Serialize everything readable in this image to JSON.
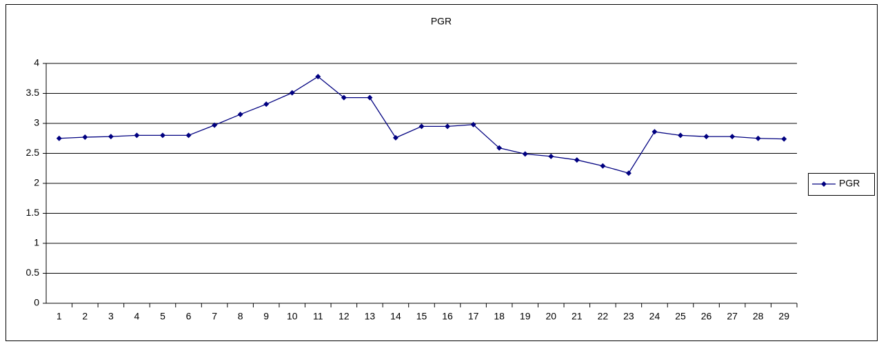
{
  "chart_data": {
    "type": "line",
    "title": "PGR",
    "categories": [
      1,
      2,
      3,
      4,
      5,
      6,
      7,
      8,
      9,
      10,
      11,
      12,
      13,
      14,
      15,
      16,
      17,
      18,
      19,
      20,
      21,
      22,
      23,
      24,
      25,
      26,
      27,
      28,
      29
    ],
    "series": [
      {
        "name": "PGR",
        "color": "#000080",
        "values": [
          2.75,
          2.77,
          2.78,
          2.8,
          2.8,
          2.8,
          2.97,
          3.15,
          3.32,
          3.51,
          3.78,
          3.43,
          3.43,
          2.76,
          2.95,
          2.95,
          2.98,
          2.59,
          2.49,
          2.45,
          2.39,
          2.29,
          2.17,
          2.86,
          2.8,
          2.78,
          2.78,
          2.75,
          2.74
        ]
      }
    ],
    "ylim": [
      0,
      4
    ],
    "yticks": [
      0,
      0.5,
      1,
      1.5,
      2,
      2.5,
      3,
      3.5,
      4
    ],
    "grid": true,
    "legend": "right"
  }
}
